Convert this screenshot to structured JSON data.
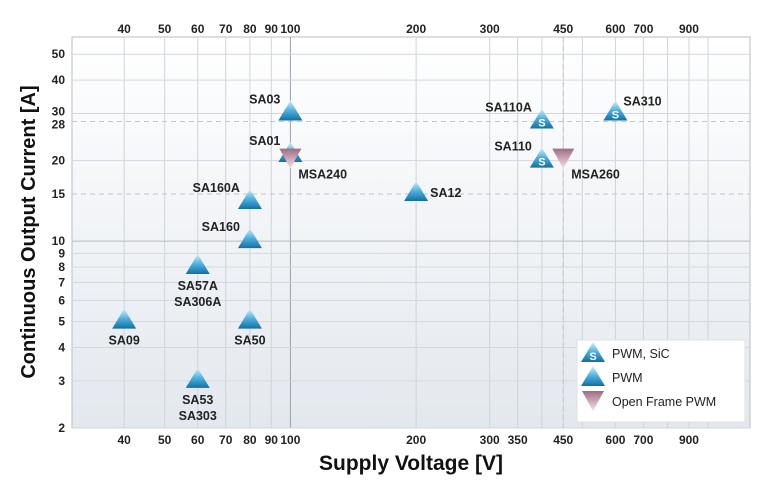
{
  "chart_data": {
    "type": "scatter",
    "xlabel": "Supply Voltage [V]",
    "ylabel": "Continuous Output Current [A]",
    "x_scale": "log",
    "y_scale": "log",
    "xlim": [
      30,
      1260
    ],
    "ylim": [
      2,
      58
    ],
    "grid": true,
    "x_ticks_top": [
      40,
      50,
      60,
      70,
      80,
      90,
      100,
      200,
      300,
      450,
      600,
      700,
      900
    ],
    "x_ticks_bottom": [
      40,
      50,
      60,
      70,
      80,
      90,
      100,
      200,
      300,
      350,
      450,
      600,
      700,
      900
    ],
    "x_gridlines": [
      40,
      50,
      60,
      70,
      80,
      90,
      100,
      200,
      300,
      350,
      400,
      450,
      500,
      600,
      700,
      800,
      900,
      1000
    ],
    "y_ticks": [
      2,
      3,
      4,
      5,
      6,
      7,
      8,
      9,
      10,
      15,
      20,
      28,
      30,
      40,
      50
    ],
    "dashed_reference_lines": {
      "x": [
        450
      ],
      "y": [
        15,
        28
      ]
    },
    "legend_position": "bottom-right",
    "legend": [
      {
        "key": "pwm_sic",
        "label": "PWM, SiC"
      },
      {
        "key": "pwm",
        "label": "PWM"
      },
      {
        "key": "open_frame",
        "label": "Open Frame PWM"
      }
    ],
    "colors": {
      "pwm": "#1f86bf",
      "pwm_light": "#bfe6f5",
      "open_frame": "#a87a8e",
      "open_frame_light": "#f0dde6",
      "plot_bg": "#e9edf2"
    },
    "points": [
      {
        "label": "SA03",
        "x": 100,
        "y": 30,
        "kind": "pwm",
        "label_pos": "left-top"
      },
      {
        "label": "SA01",
        "x": 100,
        "y": 21,
        "kind": "pwm",
        "label_pos": "left-top"
      },
      {
        "label": "MSA240",
        "x": 100,
        "y": 20,
        "kind": "open_frame",
        "label_pos": "right-bottom"
      },
      {
        "label": "SA160A",
        "x": 80,
        "y": 14,
        "kind": "pwm",
        "label_pos": "left-top"
      },
      {
        "label": "SA160",
        "x": 80,
        "y": 10,
        "kind": "pwm",
        "label_pos": "left-top"
      },
      {
        "label": "SA57A\nSA306A",
        "x": 60,
        "y": 8,
        "kind": "pwm",
        "label_pos": "below"
      },
      {
        "label": "SA09",
        "x": 40,
        "y": 5,
        "kind": "pwm",
        "label_pos": "below"
      },
      {
        "label": "SA50",
        "x": 80,
        "y": 5,
        "kind": "pwm",
        "label_pos": "below"
      },
      {
        "label": "SA53\nSA303",
        "x": 60,
        "y": 3,
        "kind": "pwm",
        "label_pos": "below"
      },
      {
        "label": "SA12",
        "x": 200,
        "y": 15,
        "kind": "pwm",
        "label_pos": "right"
      },
      {
        "label": "SA110A",
        "x": 400,
        "y": 28,
        "kind": "pwm_sic",
        "label_pos": "left-top"
      },
      {
        "label": "SA110",
        "x": 400,
        "y": 20,
        "kind": "pwm_sic",
        "label_pos": "left-top"
      },
      {
        "label": "MSA260",
        "x": 450,
        "y": 20,
        "kind": "open_frame",
        "label_pos": "right-bottom"
      },
      {
        "label": "SA310",
        "x": 600,
        "y": 30,
        "kind": "pwm_sic",
        "label_pos": "right-top"
      }
    ]
  }
}
